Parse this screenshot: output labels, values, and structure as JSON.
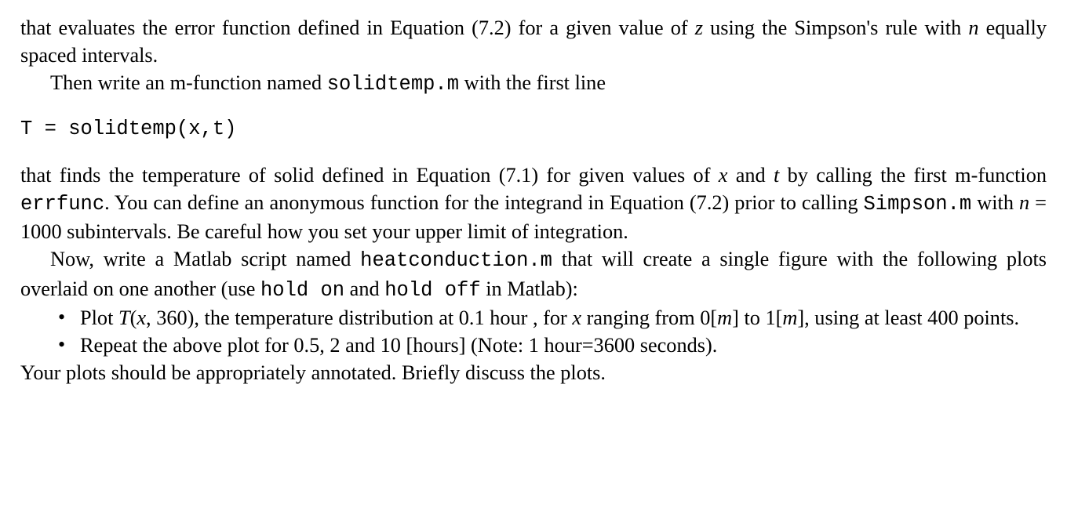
{
  "p1_a": "that evaluates the error function defined in Equation (7.2) for a given value of ",
  "p1_z": "z",
  "p1_b": " using the Simpson's rule with ",
  "p1_n": "n",
  "p1_c": " equally spaced intervals.",
  "p2_a": "Then write an m-function named ",
  "p2_code": "solidtemp.m",
  "p2_b": " with the first line",
  "code_line": "T = solidtemp(x,t)",
  "p3_a": "that finds the temperature of solid defined in Equation (7.1) for given values of ",
  "p3_x": "x",
  "p3_and": " and ",
  "p3_t": "t",
  "p3_b": " by calling the first m-function ",
  "p3_code1": "errfunc",
  "p3_c": ". You can define an anonymous function for the integrand in Equation (7.2) prior to calling ",
  "p3_code2": "Simpson.m",
  "p3_d": " with ",
  "p3_n": "n",
  "p3_eq": " = 1000 subintervals. Be careful how you set your upper limit of integration.",
  "p4_a": "Now, write a Matlab script named ",
  "p4_code": "heatconduction.m",
  "p4_b": " that will create a single figure with the following plots overlaid on one another (use ",
  "p4_hold_on": "hold on",
  "p4_c": " and ",
  "p4_hold_off": "hold off",
  "p4_d": " in Matlab):",
  "b1_a": "Plot ",
  "b1_T": "T",
  "b1_paren": "(",
  "b1_x": "x",
  "b1_mid": ", 360), the temperature distribution at 0.1 hour , for ",
  "b1_x2": "x",
  "b1_range": " ranging from 0[",
  "b1_m1": "m",
  "b1_to": "] to 1[",
  "b1_m2": "m",
  "b1_end": "], using at least 400 points.",
  "b2": "Repeat the above plot for 0.5, 2 and 10 [hours] (Note: 1 hour=3600 seconds).",
  "p5": "Your plots should be appropriately annotated. Briefly discuss the plots."
}
